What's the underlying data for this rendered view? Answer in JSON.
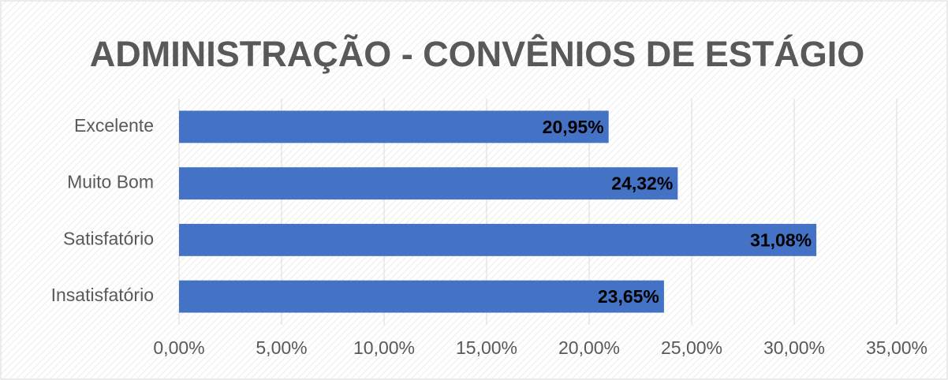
{
  "chart_data": {
    "type": "barh",
    "title": "ADMINISTRAÇÃO - CONVÊNIOS DE ESTÁGIO",
    "categories": [
      "Excelente",
      "Muito Bom",
      "Satisfatório",
      "Insatisfatório"
    ],
    "values": [
      20.95,
      24.32,
      31.08,
      23.65
    ],
    "value_labels": [
      "20,95%",
      "24,32%",
      "31,08%",
      "23,65%"
    ],
    "color": "#4472c4",
    "xlim": [
      0,
      35
    ],
    "xticks": [
      {
        "value": 0,
        "label": "0,00%"
      },
      {
        "value": 5,
        "label": "5,00%"
      },
      {
        "value": 10,
        "label": "10,00%"
      },
      {
        "value": 15,
        "label": "15,00%"
      },
      {
        "value": 20,
        "label": "20,00%"
      },
      {
        "value": 25,
        "label": "25,00%"
      },
      {
        "value": 30,
        "label": "30,00%"
      },
      {
        "value": 35,
        "label": "35,00%"
      }
    ],
    "grid": true
  }
}
